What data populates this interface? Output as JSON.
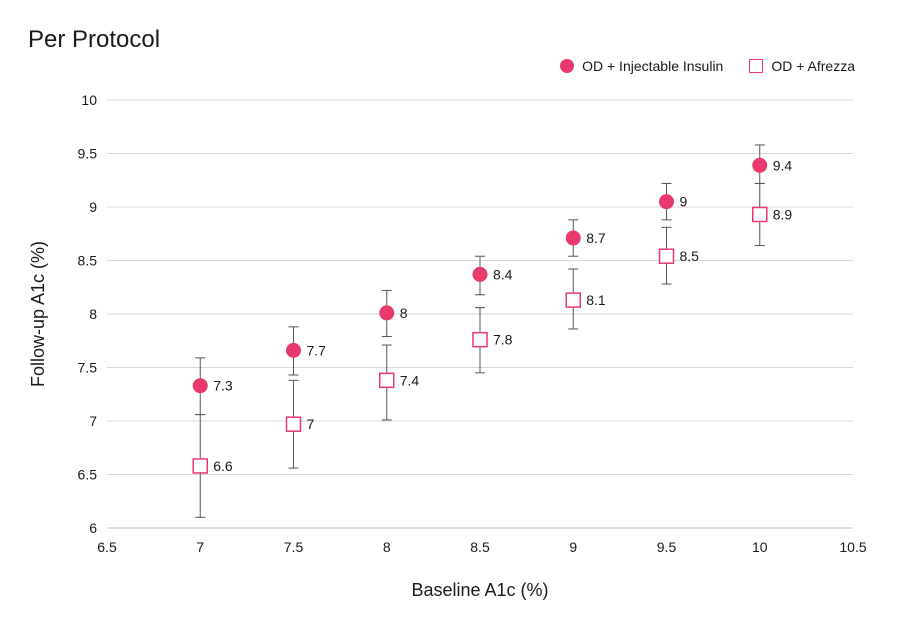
{
  "chart_data": {
    "type": "scatter",
    "title": "Per Protocol",
    "xlabel": "Baseline A1c (%)",
    "ylabel": "Follow-up A1c (%)",
    "xlim": [
      6.5,
      10.5
    ],
    "ylim": [
      6,
      10
    ],
    "x_ticks": [
      "6.5",
      "7",
      "7.5",
      "8",
      "8.5",
      "9",
      "9.5",
      "10",
      "10.5"
    ],
    "y_ticks": [
      "6",
      "6.5",
      "7",
      "7.5",
      "8",
      "8.5",
      "9",
      "9.5",
      "10"
    ],
    "grid": "horizontal",
    "legend_position": "top-right",
    "series": [
      {
        "name": "OD + Injectable Insulin",
        "marker": "filled-circle",
        "color": "#e8396d",
        "x": [
          7,
          7.5,
          8,
          8.5,
          9,
          9.5,
          10
        ],
        "y": [
          7.33,
          7.66,
          8.01,
          8.37,
          8.71,
          9.05,
          9.39
        ],
        "error_low": [
          7.06,
          7.43,
          7.79,
          8.18,
          8.54,
          8.88,
          9.22
        ],
        "error_high": [
          7.59,
          7.88,
          8.22,
          8.54,
          8.88,
          9.22,
          9.58
        ],
        "labels": [
          "7.3",
          "7.7",
          "8",
          "8.4",
          "8.7",
          "9",
          "9.4"
        ]
      },
      {
        "name": "OD + Afrezza",
        "marker": "open-square",
        "color": "#e8396d",
        "x": [
          7,
          7.5,
          8,
          8.5,
          9,
          9.5,
          10
        ],
        "y": [
          6.58,
          6.97,
          7.38,
          7.76,
          8.13,
          8.54,
          8.93
        ],
        "error_low": [
          6.1,
          6.56,
          7.01,
          7.45,
          7.86,
          8.28,
          8.64
        ],
        "error_high": [
          7.06,
          7.38,
          7.71,
          8.06,
          8.42,
          8.81,
          9.22
        ],
        "labels": [
          "6.6",
          "7",
          "7.4",
          "7.8",
          "8.1",
          "8.5",
          "8.9"
        ]
      }
    ]
  }
}
